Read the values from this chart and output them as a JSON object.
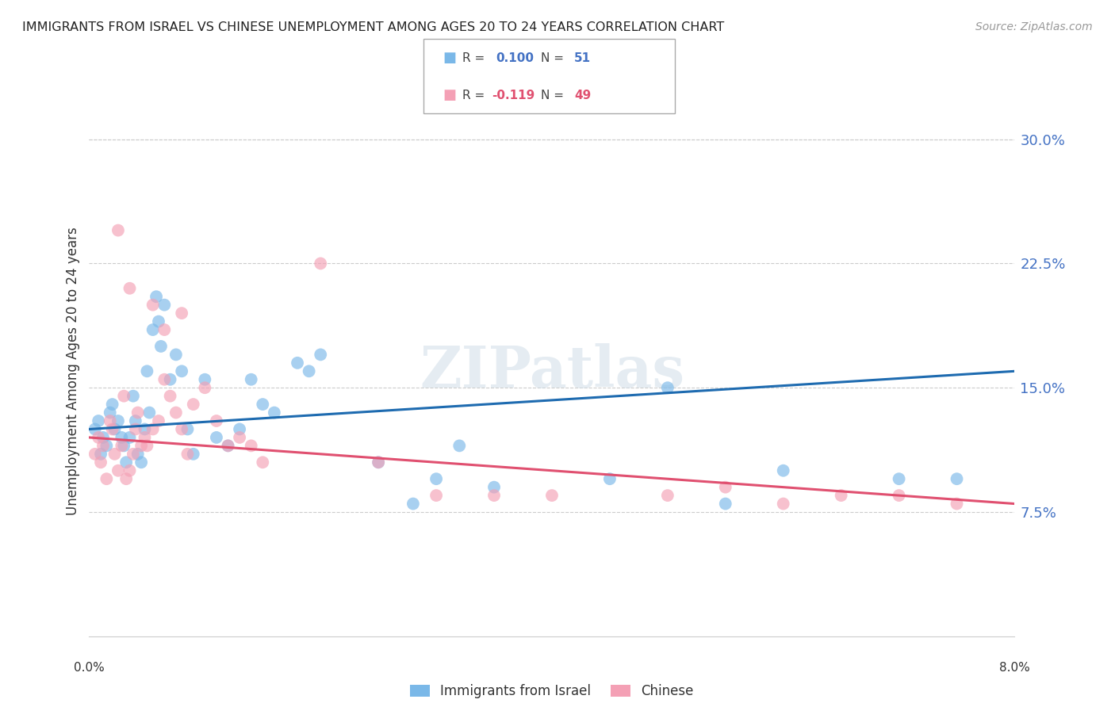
{
  "title": "IMMIGRANTS FROM ISRAEL VS CHINESE UNEMPLOYMENT AMONG AGES 20 TO 24 YEARS CORRELATION CHART",
  "source": "Source: ZipAtlas.com",
  "ylabel": "Unemployment Among Ages 20 to 24 years",
  "x_min": 0.0,
  "x_max": 8.0,
  "y_min": 0.0,
  "y_max": 32.0,
  "y_ticks": [
    7.5,
    15.0,
    22.5,
    30.0
  ],
  "blue_R": 0.1,
  "blue_N": 51,
  "pink_R": -0.119,
  "pink_N": 49,
  "blue_color": "#7ab8e8",
  "pink_color": "#f4a0b5",
  "blue_line_color": "#1e6bb0",
  "pink_line_color": "#e05070",
  "legend_blue_label": "Immigrants from Israel",
  "legend_pink_label": "Chinese",
  "watermark": "ZIPatlas",
  "blue_scatter_x": [
    0.05,
    0.08,
    0.1,
    0.12,
    0.15,
    0.18,
    0.2,
    0.22,
    0.25,
    0.28,
    0.3,
    0.32,
    0.35,
    0.38,
    0.4,
    0.42,
    0.45,
    0.48,
    0.5,
    0.52,
    0.55,
    0.58,
    0.6,
    0.62,
    0.65,
    0.7,
    0.75,
    0.8,
    0.85,
    0.9,
    1.0,
    1.1,
    1.2,
    1.3,
    1.4,
    1.5,
    1.6,
    1.8,
    1.9,
    2.0,
    2.5,
    3.0,
    3.5,
    4.5,
    5.0,
    5.5,
    6.0,
    7.0,
    7.5,
    3.2,
    2.8
  ],
  "blue_scatter_y": [
    12.5,
    13.0,
    11.0,
    12.0,
    11.5,
    13.5,
    14.0,
    12.5,
    13.0,
    12.0,
    11.5,
    10.5,
    12.0,
    14.5,
    13.0,
    11.0,
    10.5,
    12.5,
    16.0,
    13.5,
    18.5,
    20.5,
    19.0,
    17.5,
    20.0,
    15.5,
    17.0,
    16.0,
    12.5,
    11.0,
    15.5,
    12.0,
    11.5,
    12.5,
    15.5,
    14.0,
    13.5,
    16.5,
    16.0,
    17.0,
    10.5,
    9.5,
    9.0,
    9.5,
    15.0,
    8.0,
    10.0,
    9.5,
    9.5,
    11.5,
    8.0
  ],
  "pink_scatter_x": [
    0.05,
    0.08,
    0.1,
    0.12,
    0.15,
    0.18,
    0.2,
    0.22,
    0.25,
    0.28,
    0.3,
    0.32,
    0.35,
    0.38,
    0.4,
    0.42,
    0.45,
    0.48,
    0.5,
    0.55,
    0.6,
    0.65,
    0.7,
    0.75,
    0.8,
    0.85,
    0.9,
    1.0,
    1.1,
    1.2,
    1.3,
    1.4,
    1.5,
    2.0,
    2.5,
    3.0,
    3.5,
    4.0,
    5.0,
    5.5,
    6.0,
    6.5,
    7.0,
    7.5,
    0.25,
    0.35,
    0.55,
    0.65,
    0.8
  ],
  "pink_scatter_y": [
    11.0,
    12.0,
    10.5,
    11.5,
    9.5,
    13.0,
    12.5,
    11.0,
    10.0,
    11.5,
    14.5,
    9.5,
    10.0,
    11.0,
    12.5,
    13.5,
    11.5,
    12.0,
    11.5,
    12.5,
    13.0,
    15.5,
    14.5,
    13.5,
    12.5,
    11.0,
    14.0,
    15.0,
    13.0,
    11.5,
    12.0,
    11.5,
    10.5,
    22.5,
    10.5,
    8.5,
    8.5,
    8.5,
    8.5,
    9.0,
    8.0,
    8.5,
    8.5,
    8.0,
    24.5,
    21.0,
    20.0,
    18.5,
    19.5
  ],
  "blue_line_x0": 0.0,
  "blue_line_x1": 8.0,
  "blue_line_y0": 12.5,
  "blue_line_y1": 16.0,
  "pink_line_x0": 0.0,
  "pink_line_x1": 8.0,
  "pink_line_y0": 12.0,
  "pink_line_y1": 8.0
}
